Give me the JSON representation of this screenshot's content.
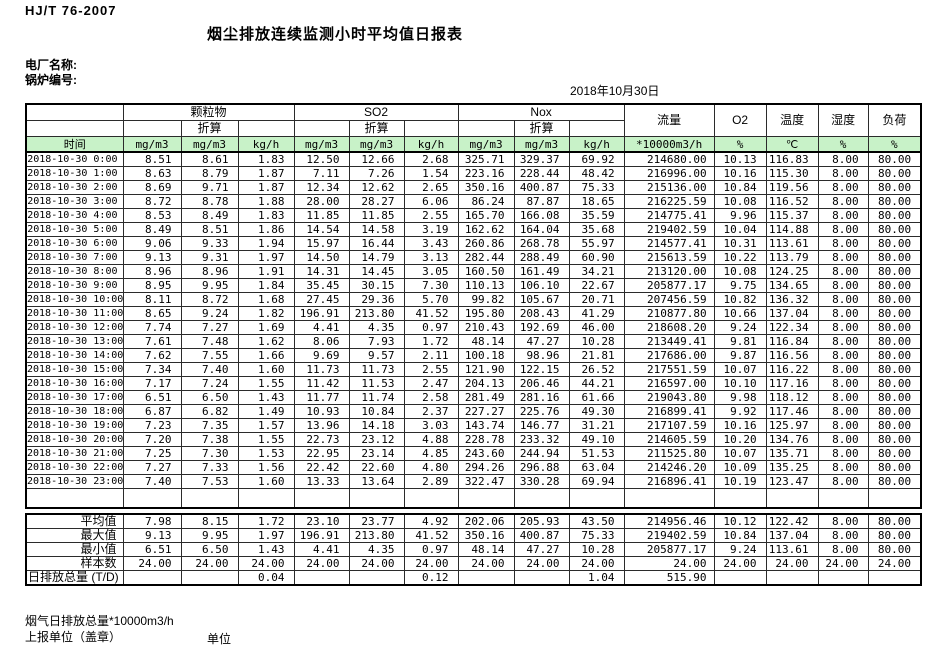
{
  "meta": {
    "standard": "HJ/T 76-2007",
    "title": "烟尘排放连续监测小时平均值日报表",
    "plant_label": "电厂名称:",
    "boiler_label": "锅炉编号:",
    "date": "2018年10月30日"
  },
  "colors": {
    "header_green": "#c8f2c8",
    "border": "#2b2b2b"
  },
  "table": {
    "groups": [
      {
        "label": "颗粒物"
      },
      {
        "label": "SO2"
      },
      {
        "label": "Nox"
      }
    ],
    "converted_label": "折算",
    "single_headers": [
      "流量",
      "O2",
      "温度",
      "湿度",
      "负荷"
    ],
    "units_row": [
      "时间",
      "mg/m3",
      "mg/m3",
      "kg/h",
      "mg/m3",
      "mg/m3",
      "kg/h",
      "mg/m3",
      "mg/m3",
      "kg/h",
      "*10000m3/h",
      "%",
      "℃",
      "%",
      "%"
    ],
    "rows": [
      {
        "time": "2018-10-30 0:00",
        "values": [
          "8.51",
          "8.61",
          "1.83",
          "12.50",
          "12.66",
          "2.68",
          "325.71",
          "329.37",
          "69.92",
          "214680.00",
          "10.13",
          "116.83",
          "8.00",
          "80.00"
        ]
      },
      {
        "time": "2018-10-30 1:00",
        "values": [
          "8.63",
          "8.79",
          "1.87",
          "7.11",
          "7.26",
          "1.54",
          "223.16",
          "228.44",
          "48.42",
          "216996.00",
          "10.16",
          "115.30",
          "8.00",
          "80.00"
        ]
      },
      {
        "time": "2018-10-30 2:00",
        "values": [
          "8.69",
          "9.71",
          "1.87",
          "12.34",
          "12.62",
          "2.65",
          "350.16",
          "400.87",
          "75.33",
          "215136.00",
          "10.84",
          "119.56",
          "8.00",
          "80.00"
        ]
      },
      {
        "time": "2018-10-30 3:00",
        "values": [
          "8.72",
          "8.78",
          "1.88",
          "28.00",
          "28.27",
          "6.06",
          "86.24",
          "87.87",
          "18.65",
          "216225.59",
          "10.08",
          "116.52",
          "8.00",
          "80.00"
        ]
      },
      {
        "time": "2018-10-30 4:00",
        "values": [
          "8.53",
          "8.49",
          "1.83",
          "11.85",
          "11.85",
          "2.55",
          "165.70",
          "166.08",
          "35.59",
          "214775.41",
          "9.96",
          "115.37",
          "8.00",
          "80.00"
        ]
      },
      {
        "time": "2018-10-30 5:00",
        "values": [
          "8.49",
          "8.51",
          "1.86",
          "14.54",
          "14.58",
          "3.19",
          "162.62",
          "164.04",
          "35.68",
          "219402.59",
          "10.04",
          "114.88",
          "8.00",
          "80.00"
        ]
      },
      {
        "time": "2018-10-30 6:00",
        "values": [
          "9.06",
          "9.33",
          "1.94",
          "15.97",
          "16.44",
          "3.43",
          "260.86",
          "268.78",
          "55.97",
          "214577.41",
          "10.31",
          "113.61",
          "8.00",
          "80.00"
        ]
      },
      {
        "time": "2018-10-30 7:00",
        "values": [
          "9.13",
          "9.31",
          "1.97",
          "14.50",
          "14.79",
          "3.13",
          "282.44",
          "288.49",
          "60.90",
          "215613.59",
          "10.22",
          "113.79",
          "8.00",
          "80.00"
        ]
      },
      {
        "time": "2018-10-30 8:00",
        "values": [
          "8.96",
          "8.96",
          "1.91",
          "14.31",
          "14.45",
          "3.05",
          "160.50",
          "161.49",
          "34.21",
          "213120.00",
          "10.08",
          "124.25",
          "8.00",
          "80.00"
        ]
      },
      {
        "time": "2018-10-30 9:00",
        "values": [
          "8.95",
          "9.95",
          "1.84",
          "35.45",
          "30.15",
          "7.30",
          "110.13",
          "106.10",
          "22.67",
          "205877.17",
          "9.75",
          "134.65",
          "8.00",
          "80.00"
        ]
      },
      {
        "time": "2018-10-30 10:00",
        "values": [
          "8.11",
          "8.72",
          "1.68",
          "27.45",
          "29.36",
          "5.70",
          "99.82",
          "105.67",
          "20.71",
          "207456.59",
          "10.82",
          "136.32",
          "8.00",
          "80.00"
        ]
      },
      {
        "time": "2018-10-30 11:00",
        "values": [
          "8.65",
          "9.24",
          "1.82",
          "196.91",
          "213.80",
          "41.52",
          "195.80",
          "208.43",
          "41.29",
          "210877.80",
          "10.66",
          "137.04",
          "8.00",
          "80.00"
        ]
      },
      {
        "time": "2018-10-30 12:00",
        "values": [
          "7.74",
          "7.27",
          "1.69",
          "4.41",
          "4.35",
          "0.97",
          "210.43",
          "192.69",
          "46.00",
          "218608.20",
          "9.24",
          "122.34",
          "8.00",
          "80.00"
        ]
      },
      {
        "time": "2018-10-30 13:00",
        "values": [
          "7.61",
          "7.48",
          "1.62",
          "8.06",
          "7.93",
          "1.72",
          "48.14",
          "47.27",
          "10.28",
          "213449.41",
          "9.81",
          "116.84",
          "8.00",
          "80.00"
        ]
      },
      {
        "time": "2018-10-30 14:00",
        "values": [
          "7.62",
          "7.55",
          "1.66",
          "9.69",
          "9.57",
          "2.11",
          "100.18",
          "98.96",
          "21.81",
          "217686.00",
          "9.87",
          "116.56",
          "8.00",
          "80.00"
        ]
      },
      {
        "time": "2018-10-30 15:00",
        "values": [
          "7.34",
          "7.40",
          "1.60",
          "11.73",
          "11.73",
          "2.55",
          "121.90",
          "122.15",
          "26.52",
          "217551.59",
          "10.07",
          "116.22",
          "8.00",
          "80.00"
        ]
      },
      {
        "time": "2018-10-30 16:00",
        "values": [
          "7.17",
          "7.24",
          "1.55",
          "11.42",
          "11.53",
          "2.47",
          "204.13",
          "206.46",
          "44.21",
          "216597.00",
          "10.10",
          "117.16",
          "8.00",
          "80.00"
        ]
      },
      {
        "time": "2018-10-30 17:00",
        "values": [
          "6.51",
          "6.50",
          "1.43",
          "11.77",
          "11.74",
          "2.58",
          "281.49",
          "281.16",
          "61.66",
          "219043.80",
          "9.98",
          "118.12",
          "8.00",
          "80.00"
        ]
      },
      {
        "time": "2018-10-30 18:00",
        "values": [
          "6.87",
          "6.82",
          "1.49",
          "10.93",
          "10.84",
          "2.37",
          "227.27",
          "225.76",
          "49.30",
          "216899.41",
          "9.92",
          "117.46",
          "8.00",
          "80.00"
        ]
      },
      {
        "time": "2018-10-30 19:00",
        "values": [
          "7.23",
          "7.35",
          "1.57",
          "13.96",
          "14.18",
          "3.03",
          "143.74",
          "146.77",
          "31.21",
          "217107.59",
          "10.16",
          "125.97",
          "8.00",
          "80.00"
        ]
      },
      {
        "time": "2018-10-30 20:00",
        "values": [
          "7.20",
          "7.38",
          "1.55",
          "22.73",
          "23.12",
          "4.88",
          "228.78",
          "233.32",
          "49.10",
          "214605.59",
          "10.20",
          "134.76",
          "8.00",
          "80.00"
        ]
      },
      {
        "time": "2018-10-30 21:00",
        "values": [
          "7.25",
          "7.30",
          "1.53",
          "22.95",
          "23.14",
          "4.85",
          "243.60",
          "244.94",
          "51.53",
          "211525.80",
          "10.07",
          "135.71",
          "8.00",
          "80.00"
        ]
      },
      {
        "time": "2018-10-30 22:00",
        "values": [
          "7.27",
          "7.33",
          "1.56",
          "22.42",
          "22.60",
          "4.80",
          "294.26",
          "296.88",
          "63.04",
          "214246.20",
          "10.09",
          "135.25",
          "8.00",
          "80.00"
        ]
      },
      {
        "time": "2018-10-30 23:00",
        "values": [
          "7.40",
          "7.53",
          "1.60",
          "13.33",
          "13.64",
          "2.89",
          "322.47",
          "330.28",
          "69.94",
          "216896.41",
          "10.19",
          "123.47",
          "8.00",
          "80.00"
        ]
      }
    ],
    "summary": [
      {
        "label": "平均值",
        "values": [
          "7.98",
          "8.15",
          "1.72",
          "23.10",
          "23.77",
          "4.92",
          "202.06",
          "205.93",
          "43.50",
          "214956.46",
          "10.12",
          "122.42",
          "8.00",
          "80.00"
        ]
      },
      {
        "label": "最大值",
        "values": [
          "9.13",
          "9.95",
          "1.97",
          "196.91",
          "213.80",
          "41.52",
          "350.16",
          "400.87",
          "75.33",
          "219402.59",
          "10.84",
          "137.04",
          "8.00",
          "80.00"
        ]
      },
      {
        "label": "最小值",
        "values": [
          "6.51",
          "6.50",
          "1.43",
          "4.41",
          "4.35",
          "0.97",
          "48.14",
          "47.27",
          "10.28",
          "205877.17",
          "9.24",
          "113.61",
          "8.00",
          "80.00"
        ]
      },
      {
        "label": "样本数",
        "values": [
          "24.00",
          "24.00",
          "24.00",
          "24.00",
          "24.00",
          "24.00",
          "24.00",
          "24.00",
          "24.00",
          "24.00",
          "24.00",
          "24.00",
          "24.00",
          "24.00"
        ]
      },
      {
        "label": "日排放总量 (T/D)",
        "values": [
          "",
          "",
          "0.04",
          "",
          "",
          "0.12",
          "",
          "",
          "1.04",
          "515.90",
          "",
          "",
          "",
          ""
        ]
      }
    ]
  },
  "footer": {
    "flue_total_label": "烟气日排放总量*10000m3/h",
    "report_unit_label": "上报单位（盖章）",
    "unit_label": "单位"
  }
}
